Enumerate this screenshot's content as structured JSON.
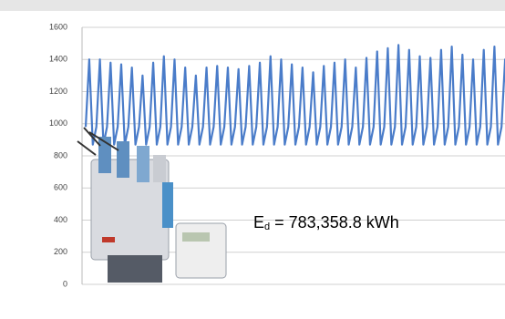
{
  "chart_data": {
    "type": "line",
    "annotation": {
      "symbol": "E",
      "subscript": "d",
      "text": "= 783,358.8 kWh"
    },
    "color": "#4a7cc9",
    "values": [
      980,
      1400,
      870,
      980,
      1400,
      870,
      980,
      1380,
      870,
      980,
      1370,
      870,
      980,
      1350,
      870,
      980,
      1300,
      870,
      980,
      1380,
      870,
      980,
      1420,
      870,
      980,
      1400,
      870,
      980,
      1350,
      870,
      980,
      1300,
      870,
      980,
      1350,
      870,
      980,
      1360,
      870,
      980,
      1350,
      870,
      980,
      1340,
      870,
      980,
      1360,
      870,
      980,
      1380,
      870,
      980,
      1420,
      870,
      980,
      1400,
      870,
      980,
      1370,
      870,
      980,
      1350,
      870,
      980,
      1320,
      870,
      980,
      1360,
      870,
      980,
      1380,
      870,
      980,
      1400,
      870,
      980,
      1350,
      870,
      980,
      1410,
      870,
      980,
      1450,
      870,
      980,
      1470,
      870,
      980,
      1490,
      870,
      980,
      1460,
      870,
      980,
      1420,
      870,
      980,
      1410,
      870,
      980,
      1460,
      870,
      980,
      1480,
      870,
      980,
      1430,
      870,
      980,
      1400,
      870,
      980,
      1460,
      870,
      980,
      1480,
      870,
      980,
      1400,
      830
    ],
    "ylim": [
      0,
      1600
    ],
    "yticks": [
      0,
      200,
      400,
      600,
      800,
      1000,
      1200,
      1400,
      1600
    ],
    "grid": true
  }
}
